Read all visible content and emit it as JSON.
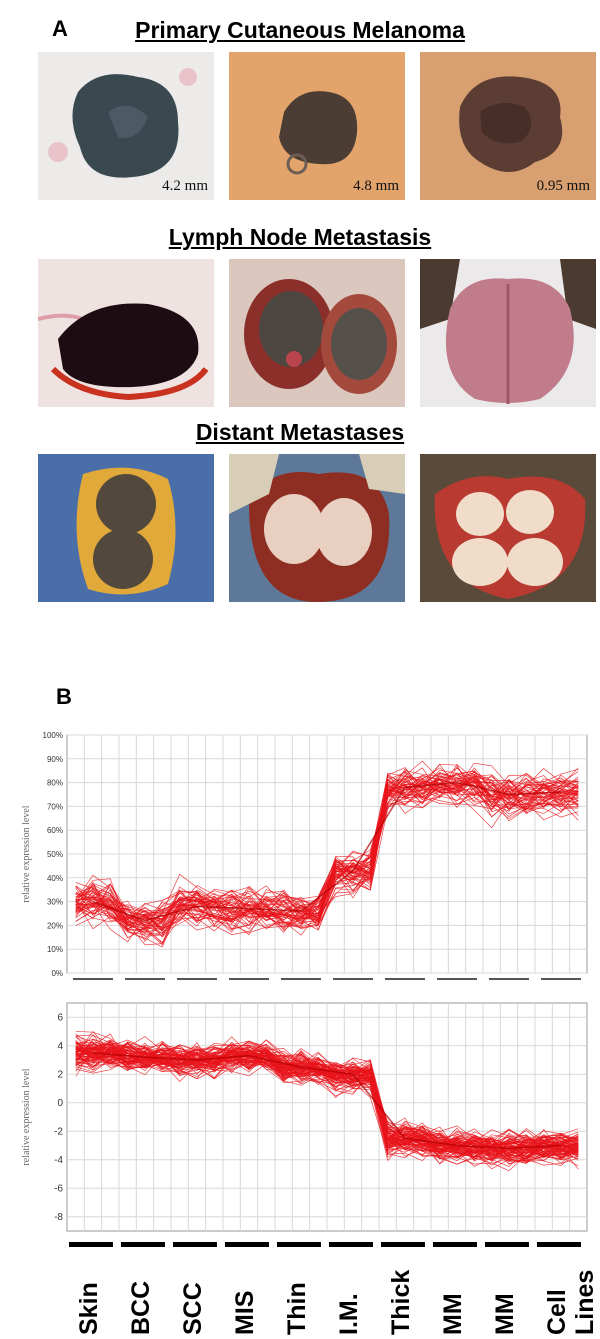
{
  "panel_a": {
    "letter": "A",
    "sections": [
      {
        "title": "Primary Cutaneous Melanoma",
        "photos": [
          {
            "label": "4.2 mm",
            "bg": "#e9e9e7",
            "lesion": "#3a4850"
          },
          {
            "label": "4.8 mm",
            "bg": "#e3a46c",
            "lesion": "#4b3d33"
          },
          {
            "label": "0.95 mm",
            "bg": "#d8a070",
            "lesion": "#5c3d33"
          }
        ]
      },
      {
        "title": "Lymph Node  Metastasis",
        "photos": [
          {
            "label": "",
            "bg": "#efe3e1",
            "lesion": "#1d0d12"
          },
          {
            "label": "",
            "bg": "#dcc7bf",
            "lesion": "#4e4640"
          },
          {
            "label": "",
            "bg": "#ece9ea",
            "lesion": "#c07c8a"
          }
        ]
      },
      {
        "title": "Distant  Metastases",
        "photos": [
          {
            "label": "",
            "bg": "#4a6fa8",
            "lesion": "#52493c"
          },
          {
            "label": "",
            "bg": "#5e7899",
            "lesion": "#e8cfc0"
          },
          {
            "label": "",
            "bg": "#5a4a3a",
            "lesion": "#f0dcc8"
          }
        ]
      }
    ]
  },
  "panel_b": {
    "letter": "B",
    "x_groups": [
      "Skin",
      "BCC",
      "SCC",
      "MIS",
      "Thin",
      "I.M.",
      "Thick",
      "MM",
      "MM",
      "Cell Lines"
    ],
    "line_color": "#e8141c"
  },
  "chart_data": [
    {
      "type": "line",
      "ylabel": "relative expression level",
      "ylim": [
        0,
        100
      ],
      "y_ticks": [
        "0%",
        "10%",
        "20%",
        "30%",
        "40%",
        "50%",
        "60%",
        "70%",
        "80%",
        "90%",
        "100%"
      ],
      "x": [
        "Skin",
        "BCC",
        "SCC",
        "MIS",
        "Thin",
        "I.M.",
        "Thick",
        "MM",
        "MM",
        "Cell Lines"
      ],
      "series": [
        {
          "values": [
            30,
            22,
            28,
            27,
            26,
            43,
            78,
            80,
            75,
            76
          ]
        }
      ],
      "grid": true
    },
    {
      "type": "line",
      "ylabel": "relative expression level",
      "ylim": [
        -9,
        7
      ],
      "y_ticks": [
        "6",
        "4",
        "2",
        "0",
        "-2",
        "-4",
        "-6",
        "-8"
      ],
      "x": [
        "Skin",
        "BCC",
        "SCC",
        "MIS",
        "Thin",
        "I.M.",
        "Thick",
        "MM",
        "MM",
        "Cell Lines"
      ],
      "series": [
        {
          "values": [
            3.5,
            3.2,
            3.0,
            3.3,
            2.5,
            2.0,
            -2.5,
            -3.0,
            -3.2,
            -3.0
          ]
        }
      ],
      "grid": true
    }
  ]
}
